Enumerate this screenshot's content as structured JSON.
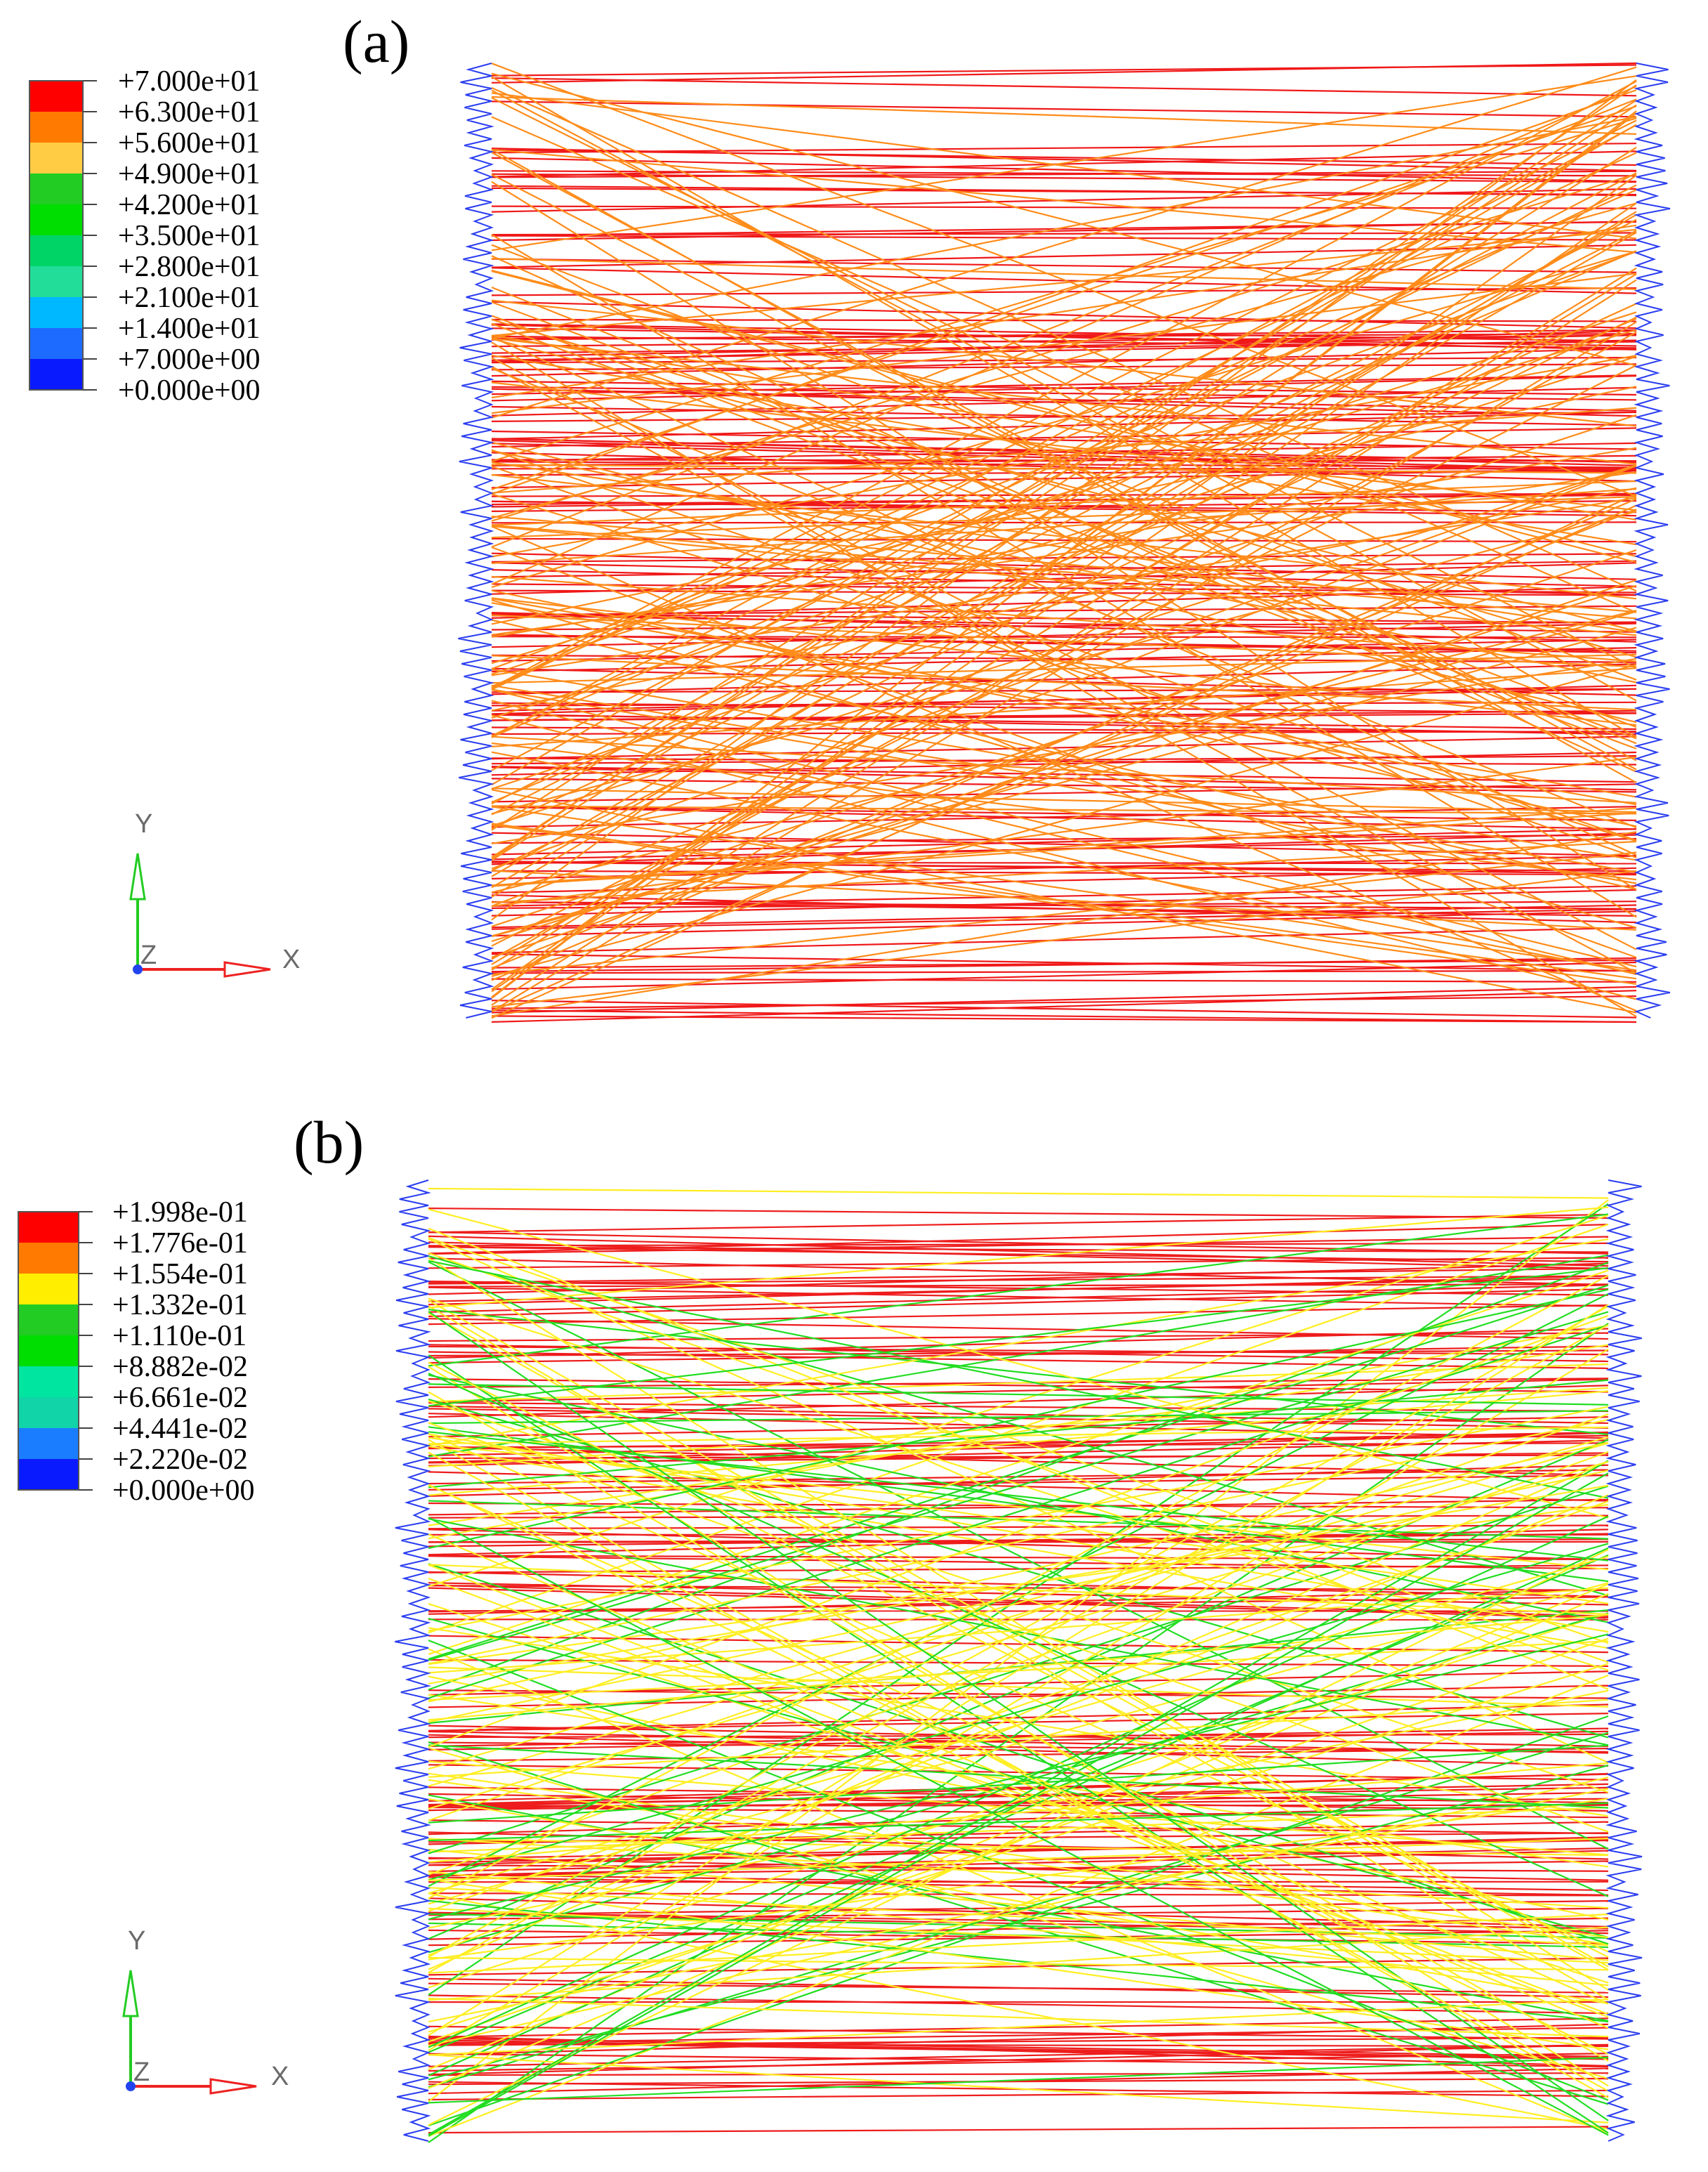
{
  "panels": [
    {
      "id": "a",
      "label": "(a)",
      "legend": {
        "values": [
          "+7.000e+01",
          "+6.300e+01",
          "+5.600e+01",
          "+4.900e+01",
          "+4.200e+01",
          "+3.500e+01",
          "+2.800e+01",
          "+2.100e+01",
          "+1.400e+01",
          "+7.000e+00",
          "+0.000e+00"
        ],
        "colors": [
          "#ff0000",
          "#ff7a00",
          "#ffcc44",
          "#22cc22",
          "#00dd00",
          "#00d466",
          "#22dd99",
          "#00b8ff",
          "#1e6bff",
          "#0a1aff"
        ]
      },
      "line_colors": {
        "straight": "#f01818",
        "diagonal": "#ff8c1a",
        "edge": "#2a3df0"
      },
      "axes": {
        "y": "Y",
        "z": "Z",
        "x": "X"
      }
    },
    {
      "id": "b",
      "label": "(b)",
      "legend": {
        "values": [
          "+1.998e-01",
          "+1.776e-01",
          "+1.554e-01",
          "+1.332e-01",
          "+1.110e-01",
          "+8.882e-02",
          "+6.661e-02",
          "+4.441e-02",
          "+2.220e-02",
          "+0.000e+00"
        ],
        "colors": [
          "#ff0000",
          "#ff7a00",
          "#ffee00",
          "#22cc22",
          "#00dd00",
          "#00e5a0",
          "#11d4a8",
          "#1a7dff",
          "#0a1aff"
        ]
      },
      "line_colors": {
        "straight": "#ee1c1c",
        "diagonal_a": "#ffee22",
        "diagonal_b": "#22dd22",
        "edge": "#2a3df0"
      },
      "axes": {
        "y": "Y",
        "z": "Z",
        "x": "X"
      }
    }
  ]
}
